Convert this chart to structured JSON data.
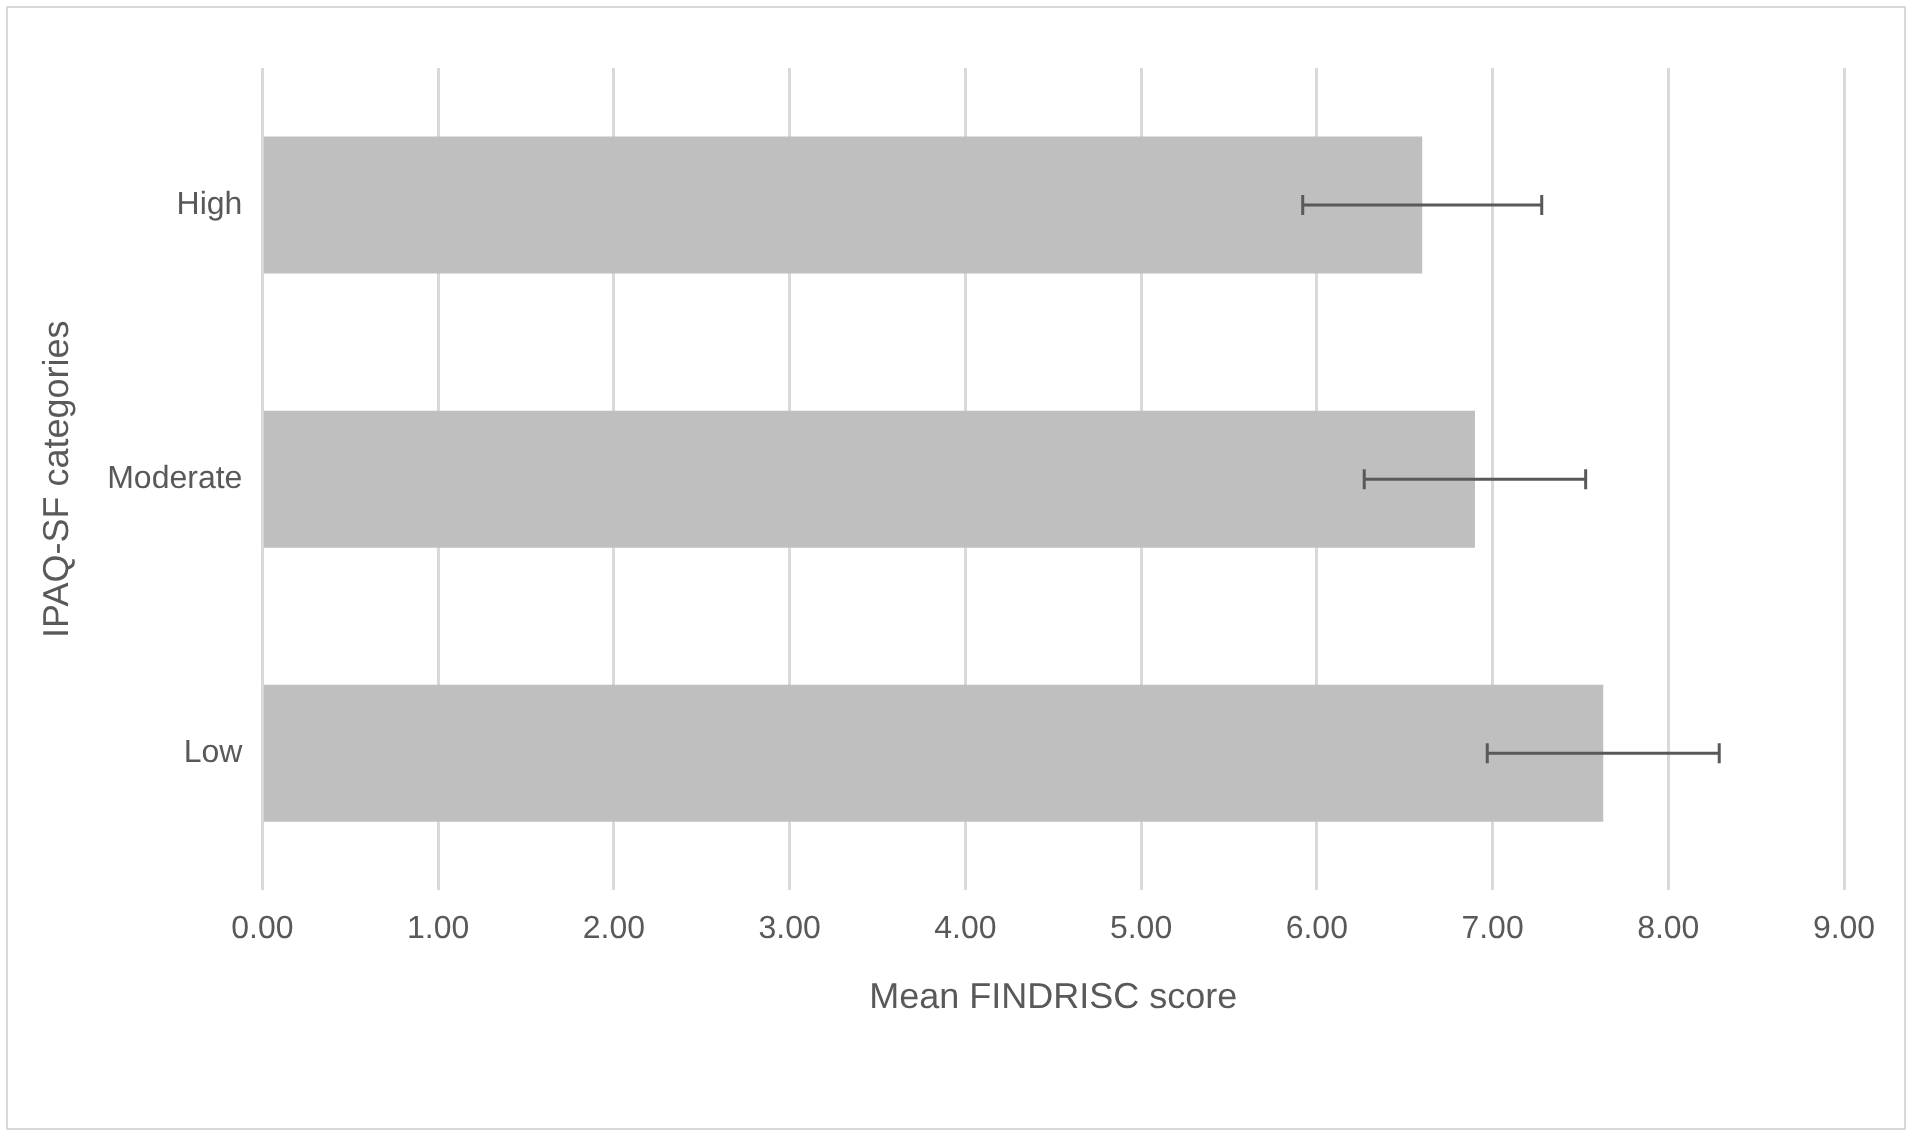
{
  "chart_data": {
    "type": "bar",
    "orientation": "horizontal",
    "xlabel": "Mean FINDRISC score",
    "ylabel": "IPAQ-SF categories",
    "categories": [
      "High",
      "Moderate",
      "Low"
    ],
    "values": [
      6.6,
      6.9,
      7.63
    ],
    "errors": [
      0.68,
      0.63,
      0.66
    ],
    "color": "#bfbfbf",
    "xlim": [
      0,
      9
    ],
    "xticks": [
      {
        "value": 0,
        "label": "0.00"
      },
      {
        "value": 1,
        "label": "1.00"
      },
      {
        "value": 2,
        "label": "2.00"
      },
      {
        "value": 3,
        "label": "3.00"
      },
      {
        "value": 4,
        "label": "4.00"
      },
      {
        "value": 5,
        "label": "5.00"
      },
      {
        "value": 6,
        "label": "6.00"
      },
      {
        "value": 7,
        "label": "7.00"
      },
      {
        "value": 8,
        "label": "8.00"
      },
      {
        "value": 9,
        "label": "9.00"
      }
    ],
    "grid": "x",
    "legend": false
  }
}
